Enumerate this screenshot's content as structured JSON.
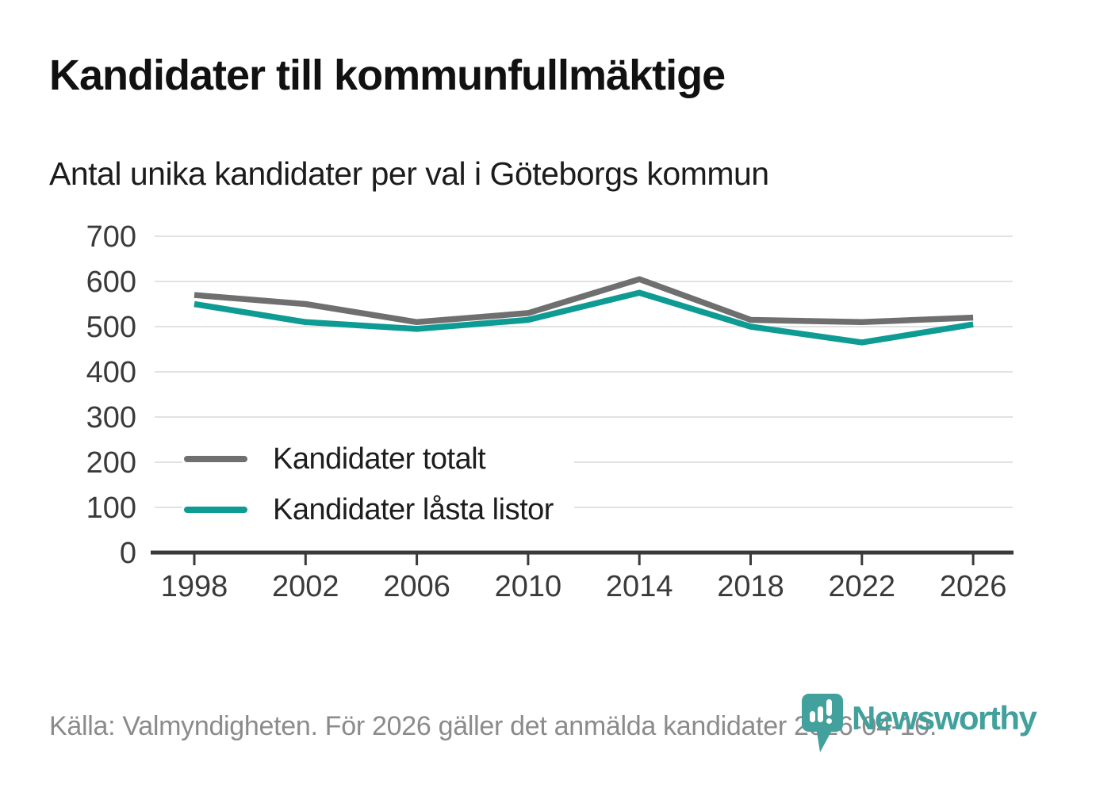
{
  "header": {
    "title": "Kandidater till kommunfullmäktige",
    "subtitle": "Antal unika kandidater per val i Göteborgs kommun"
  },
  "chart_data": {
    "type": "line",
    "categories": [
      "1998",
      "2002",
      "2006",
      "2010",
      "2014",
      "2018",
      "2022",
      "2026"
    ],
    "series": [
      {
        "name": "Kandidater totalt",
        "color": "#6f6f6f",
        "values": [
          570,
          550,
          510,
          530,
          605,
          515,
          510,
          520
        ]
      },
      {
        "name": "Kandidater låsta listor",
        "color": "#0d9b94",
        "values": [
          550,
          510,
          495,
          515,
          575,
          500,
          465,
          505
        ]
      }
    ],
    "title": "Kandidater till kommunfullmäktige",
    "subtitle": "Antal unika kandidater per val i Göteborgs kommun",
    "xlabel": "",
    "ylabel": "",
    "ylim": [
      0,
      700
    ],
    "y_ticks": [
      0,
      100,
      200,
      300,
      400,
      500,
      600,
      700
    ],
    "grid": true,
    "legend_position": "inside-bottom-left"
  },
  "colors": {
    "gridline": "#e2e2e2",
    "axis": "#3a3a3a",
    "axis_text": "#3a3a3a",
    "footer_text": "#8b8b8b"
  },
  "footer": {
    "source": "Källa: Valmyndigheten. För 2026 gäller det anmälda kandidater 2026-04-10."
  },
  "logo": {
    "text": "Newsworthy",
    "color": "#42a19c",
    "icon": "newsworthy-bubble-barchart-icon"
  }
}
